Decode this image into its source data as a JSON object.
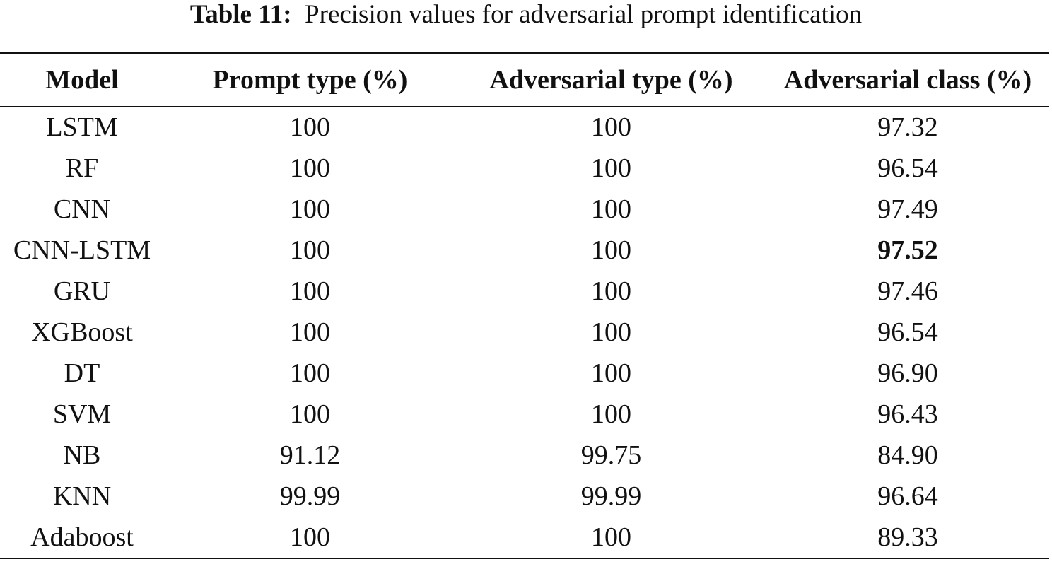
{
  "caption": {
    "label": "Table 11:",
    "text": "Precision values for adversarial prompt identification"
  },
  "table": {
    "headers": [
      "Model",
      "Prompt type (%)",
      "Adversarial type (%)",
      "Adversarial class (%)"
    ],
    "rows": [
      [
        "LSTM",
        "100",
        "100",
        "97.32"
      ],
      [
        "RF",
        "100",
        "100",
        "96.54"
      ],
      [
        "CNN",
        "100",
        "100",
        "97.49"
      ],
      [
        "CNN-LSTM",
        "100",
        "100",
        "97.52"
      ],
      [
        "GRU",
        "100",
        "100",
        "97.46"
      ],
      [
        "XGBoost",
        "100",
        "100",
        "96.54"
      ],
      [
        "DT",
        "100",
        "100",
        "96.90"
      ],
      [
        "SVM",
        "100",
        "100",
        "96.43"
      ],
      [
        "NB",
        "91.12",
        "99.75",
        "84.90"
      ],
      [
        "KNN",
        "99.99",
        "99.99",
        "96.64"
      ],
      [
        "Adaboost",
        "100",
        "100",
        "89.33"
      ]
    ],
    "bold_cells": [
      [
        3,
        3
      ]
    ]
  }
}
